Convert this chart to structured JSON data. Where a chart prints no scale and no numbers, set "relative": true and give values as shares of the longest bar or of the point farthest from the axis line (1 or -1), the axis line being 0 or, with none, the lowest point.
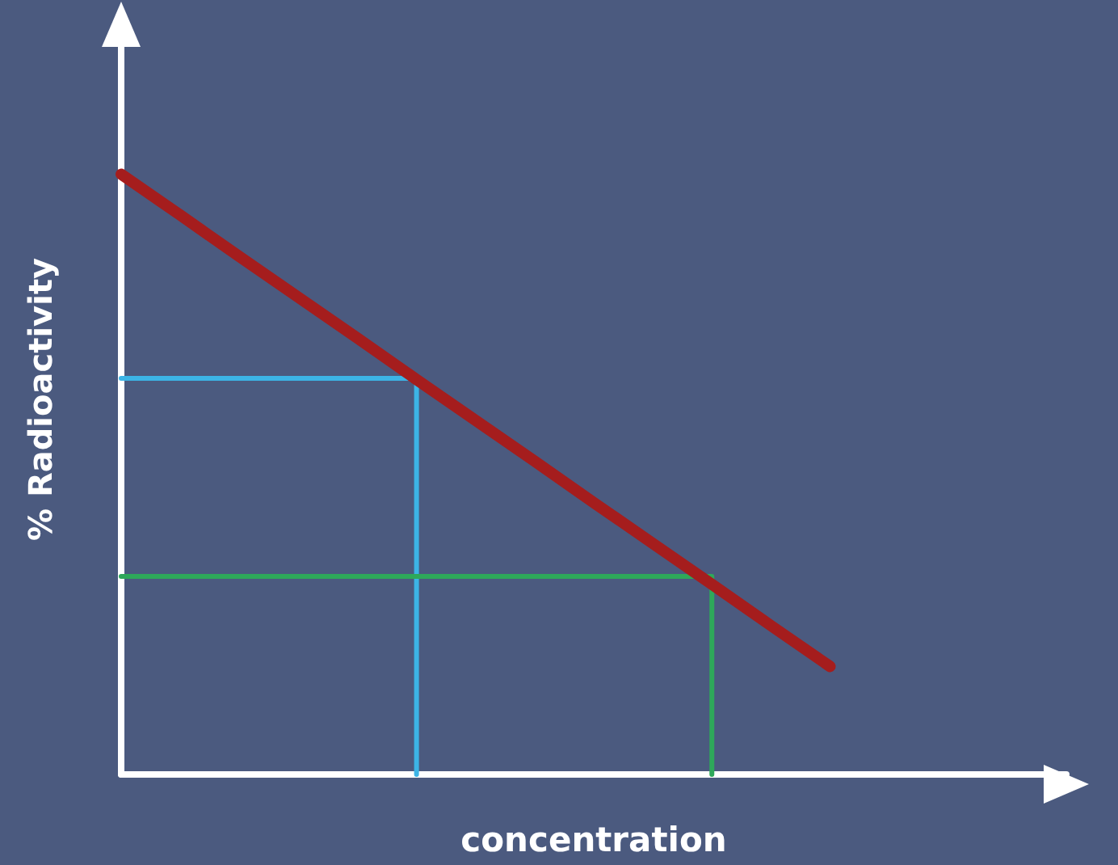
{
  "chart_data": {
    "type": "line",
    "relative": true,
    "xlabel": "concentration",
    "ylabel": "% Radioactivity",
    "categories": [
      null,
      null,
      null,
      null,
      null,
      null,
      null,
      null,
      null,
      null,
      null,
      null,
      null,
      null,
      null,
      null,
      null
    ],
    "tick_labels": false,
    "marker": "none",
    "line_style": "solid",
    "series": [
      {
        "color": "#a51d1d",
        "values": [
          1,
          0.932,
          0.863,
          0.795,
          0.727,
          0.658,
          0.59,
          0.522,
          0.453,
          0.385,
          0.317,
          0.248,
          0.18,
          null,
          null,
          null,
          null
        ]
      },
      {
        "type": "step",
        "color": "#3cb4e6",
        "values": [
          0.66,
          0.66,
          0.66,
          0.66,
          0.66,
          0,
          null,
          null,
          null,
          null,
          null,
          null,
          null,
          null,
          null,
          null,
          null
        ]
      },
      {
        "type": "step",
        "color": "#2ea85a",
        "values": [
          0.33,
          0.33,
          0.33,
          0.33,
          0.33,
          0.33,
          0.33,
          0.33,
          0.33,
          0.33,
          0,
          null,
          null,
          null,
          null,
          null,
          null
        ]
      }
    ]
  }
}
